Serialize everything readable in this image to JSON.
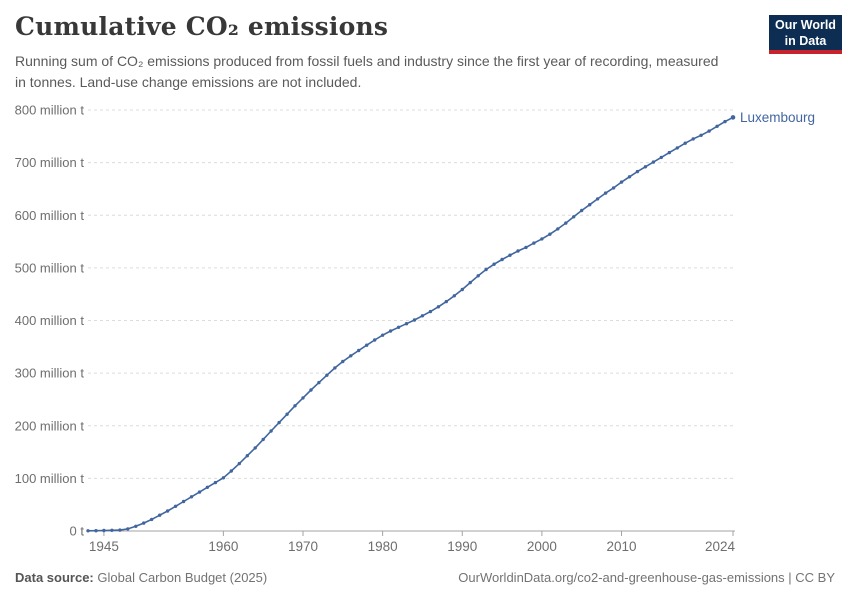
{
  "header": {
    "logo": {
      "line1": "Our World",
      "line2": "in Data"
    }
  },
  "chart_data": {
    "type": "line",
    "title": "Cumulative CO₂ emissions",
    "subtitle": "Running sum of CO₂ emissions produced from fossil fuels and industry since the first year of recording, measured in tonnes. Land-use change emissions are not included.",
    "unit": "tonnes",
    "grid": true,
    "legend_position": "end-of-line-label",
    "xlim": [
      1943,
      2024
    ],
    "ylim": [
      0,
      800
    ],
    "yticks": [
      {
        "value": 0,
        "label": "0 t"
      },
      {
        "value": 100,
        "label": "100 million t"
      },
      {
        "value": 200,
        "label": "200 million t"
      },
      {
        "value": 300,
        "label": "300 million t"
      },
      {
        "value": 400,
        "label": "400 million t"
      },
      {
        "value": 500,
        "label": "500 million t"
      },
      {
        "value": 600,
        "label": "600 million t"
      },
      {
        "value": 700,
        "label": "700 million t"
      },
      {
        "value": 800,
        "label": "800 million t"
      }
    ],
    "xticks": [
      {
        "year": 1945,
        "label": "1945"
      },
      {
        "year": 1960,
        "label": "1960"
      },
      {
        "year": 1970,
        "label": "1970"
      },
      {
        "year": 1980,
        "label": "1980"
      },
      {
        "year": 1990,
        "label": "1990"
      },
      {
        "year": 2000,
        "label": "2000"
      },
      {
        "year": 2010,
        "label": "2010"
      },
      {
        "year": 2024,
        "label": "2024"
      }
    ],
    "series": [
      {
        "name": "Luxembourg",
        "color": "#41669f",
        "unit": "million t",
        "years": [
          1943,
          1944,
          1945,
          1946,
          1947,
          1948,
          1949,
          1950,
          1951,
          1952,
          1953,
          1954,
          1955,
          1956,
          1957,
          1958,
          1959,
          1960,
          1961,
          1962,
          1963,
          1964,
          1965,
          1966,
          1967,
          1968,
          1969,
          1970,
          1971,
          1972,
          1973,
          1974,
          1975,
          1976,
          1977,
          1978,
          1979,
          1980,
          1981,
          1982,
          1983,
          1984,
          1985,
          1986,
          1987,
          1988,
          1989,
          1990,
          1991,
          1992,
          1993,
          1994,
          1995,
          1996,
          1997,
          1998,
          1999,
          2000,
          2001,
          2002,
          2003,
          2004,
          2005,
          2006,
          2007,
          2008,
          2009,
          2010,
          2011,
          2012,
          2013,
          2014,
          2015,
          2016,
          2017,
          2018,
          2019,
          2020,
          2021,
          2022,
          2023,
          2024
        ],
        "values": [
          0.3,
          0.6,
          1,
          1.4,
          1.8,
          4,
          9,
          15,
          22,
          30,
          38,
          47,
          56,
          65,
          74,
          83,
          92,
          101,
          114,
          128,
          143,
          158,
          174,
          190,
          206,
          222,
          238,
          253,
          268,
          282,
          296,
          310,
          322,
          333,
          343,
          353,
          363,
          372,
          380,
          387,
          394,
          401,
          409,
          417,
          426,
          436,
          447,
          459,
          472,
          485,
          497,
          507,
          516,
          524,
          532,
          539,
          547,
          555,
          564,
          574,
          585,
          597,
          609,
          620,
          631,
          642,
          652,
          663,
          673,
          683,
          692,
          701,
          710,
          719,
          728,
          737,
          745,
          752,
          760,
          769,
          778,
          786
        ]
      }
    ]
  },
  "colors": {
    "line": "#41669f",
    "grid": "#dcdcdc",
    "axis": "#a3a3a3",
    "tick_label": "#6e6e6e",
    "title": "#383838",
    "subtitle": "#5a5a5a",
    "footer": "#737373",
    "footer_label": "#555555",
    "logo_bg": "#0d2e52",
    "logo_stripe": "#c7232d"
  },
  "footer": {
    "source_label": "Data source:",
    "source_value": "Global Carbon Budget (2025)",
    "link": "OurWorldinData.org/co2-and-greenhouse-gas-emissions | CC BY"
  }
}
